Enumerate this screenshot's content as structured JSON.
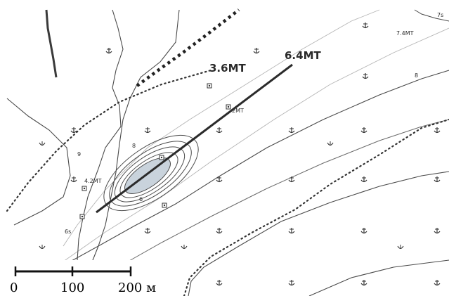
{
  "labels": {
    "depth_36": "3.6MT",
    "depth_64": "6.4MT",
    "depth_74": "7.4MT",
    "depth_42": "4.2MT",
    "wreck_small": "2MT",
    "contour_8_top": "8",
    "contour_8_right": "8",
    "contour_6_low": "6",
    "contour_9": "9",
    "contour_7": "7s",
    "contour_6_left": "6s"
  },
  "scale_bar": {
    "tick_0": "0",
    "tick_100": "100",
    "tick_200": "200 м"
  },
  "symbols": {
    "anchorage": "anchor-icon",
    "weed": "kelp-icon",
    "rock": "rock-icon"
  },
  "colors": {
    "water": "#ffffff",
    "shoal": "#c9d3dc",
    "contour": "#4a4a4a",
    "track": "#2b2b2b"
  }
}
